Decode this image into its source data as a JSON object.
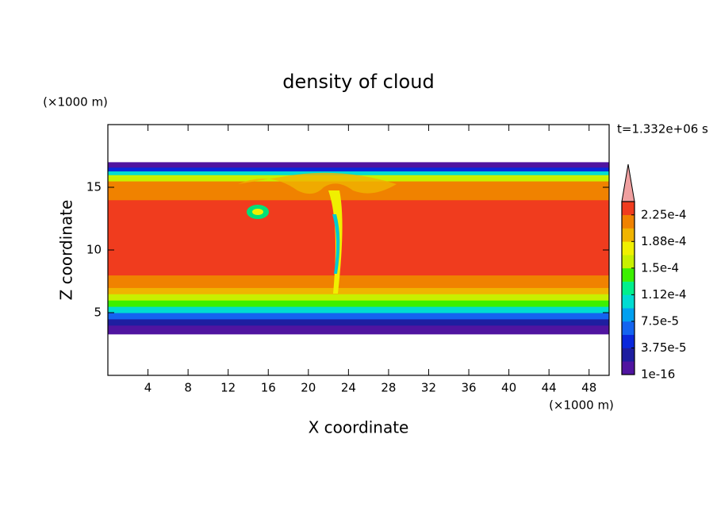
{
  "chart_data": {
    "type": "contour",
    "title": "density of cloud",
    "x_label": "X coordinate",
    "y_label": "Z coordinate",
    "x_unit": "(×1000 m)",
    "y_unit": "(×1000 m)",
    "time_label": "t=1.332e+06 s",
    "xlim": [
      0,
      50
    ],
    "ylim": [
      0,
      20
    ],
    "xticks": [
      4,
      8,
      12,
      16,
      20,
      24,
      28,
      32,
      36,
      40,
      44,
      48
    ],
    "yticks": [
      5,
      10,
      15
    ],
    "profile": {
      "z_edges": [
        3.3,
        4,
        4.5,
        5,
        5.5,
        6,
        6.5,
        7,
        8,
        14,
        15.5,
        16,
        16.3,
        16.6,
        17
      ],
      "values": [
        1e-05,
        2.5e-05,
        6e-05,
        0.00011,
        0.00014,
        0.00016,
        0.00019,
        0.00022,
        0.00024,
        0.000215,
        0.00016,
        0.00011,
        5e-05,
        1e-05
      ]
    },
    "colorbar": {
      "clim": [
        1e-16,
        0.00024375
      ],
      "colors": [
        "#5014a0",
        "#1e1ea0",
        "#0a28dc",
        "#1464f0",
        "#00a0f0",
        "#00dcd2",
        "#00f08c",
        "#3cf000",
        "#c8f000",
        "#f0f000",
        "#f0b400",
        "#f08200",
        "#f03c1e"
      ],
      "extend_color": "#f0a0a0",
      "ticks": [
        {
          "value": 1e-16,
          "label": "1e-16"
        },
        {
          "value": 3.75e-05,
          "label": "3.75e-5"
        },
        {
          "value": 7.5e-05,
          "label": "7.5e-5"
        },
        {
          "value": 0.0001125,
          "label": "1.12e-4"
        },
        {
          "value": 0.00015,
          "label": "1.5e-4"
        },
        {
          "value": 0.0001875,
          "label": "1.88e-4"
        },
        {
          "value": 0.000225,
          "label": "2.25e-4"
        }
      ]
    }
  }
}
